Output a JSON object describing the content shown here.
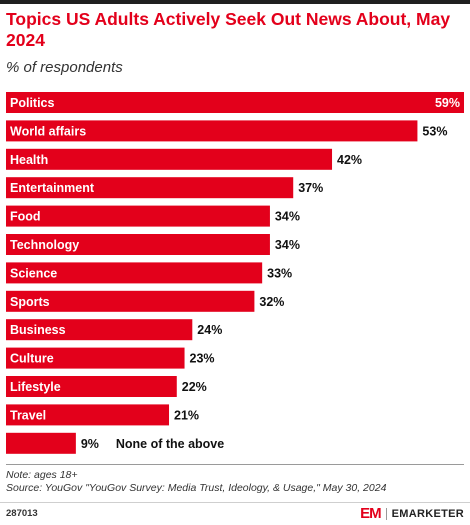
{
  "header": {
    "title": "Topics US Adults Actively Seek Out News About, May 2024",
    "subtitle": "% of respondents"
  },
  "chart_data": {
    "type": "bar",
    "orientation": "horizontal",
    "categories": [
      "Politics",
      "World affairs",
      "Health",
      "Entertainment",
      "Food",
      "Technology",
      "Science",
      "Sports",
      "Business",
      "Culture",
      "Lifestyle",
      "Travel",
      "None of the above"
    ],
    "values": [
      59,
      53,
      42,
      37,
      34,
      34,
      33,
      32,
      24,
      23,
      22,
      21,
      9
    ],
    "value_labels": [
      "59%",
      "53%",
      "42%",
      "37%",
      "34%",
      "34%",
      "33%",
      "32%",
      "24%",
      "23%",
      "22%",
      "21%",
      "9%"
    ],
    "bar_color": "#e3001b",
    "xlim": [
      0,
      59
    ],
    "grid": false,
    "legend": "none"
  },
  "footer": {
    "note": "Note: ages 18+",
    "source": "Source: YouGov \"YouGov Survey: Media Trust, Ideology, & Usage,\" May 30, 2024",
    "chart_id": "287013",
    "logo_mark": "EM",
    "logo_text": "EMARKETER"
  }
}
